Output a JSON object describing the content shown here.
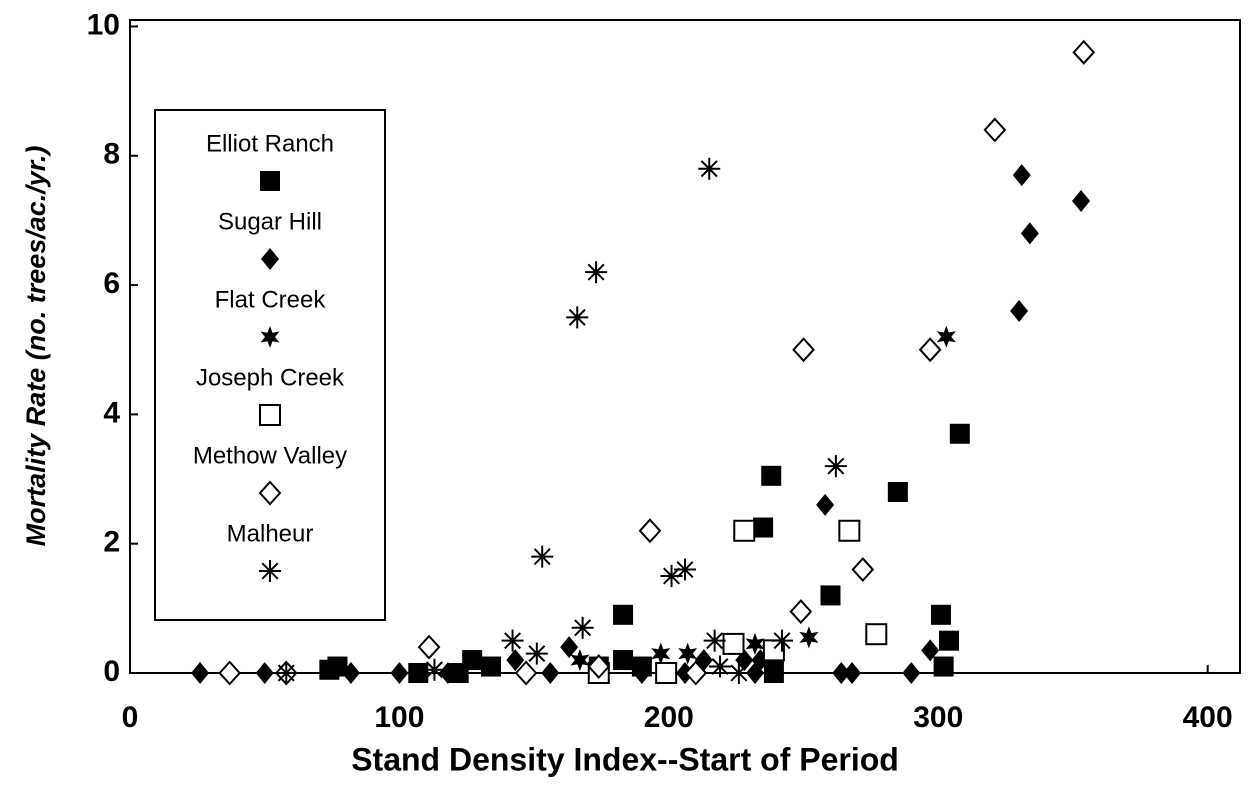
{
  "chart_data": {
    "type": "scatter",
    "xlabel": "Stand Density Index--Start of Period",
    "ylabel": "Mortality Rate (no. trees/ac./yr.)",
    "xlim": [
      0,
      412
    ],
    "ylim": [
      0,
      10.1
    ],
    "xticks": [
      0,
      100,
      200,
      300,
      400
    ],
    "yticks": [
      0,
      2,
      4,
      6,
      8,
      10
    ],
    "legend": "upper left",
    "series": [
      {
        "name": "Elliot Ranch",
        "marker": "filled-square",
        "color": "#000000",
        "x": [
          74,
          77,
          107,
          122,
          127,
          134,
          174,
          183,
          183,
          190,
          235,
          238,
          239,
          239,
          260,
          285,
          301,
          302,
          304,
          308
        ],
        "values": [
          0.05,
          0.1,
          0,
          0,
          0.2,
          0.1,
          0.1,
          0.9,
          0.2,
          0.1,
          2.25,
          3.05,
          0,
          0.3,
          1.2,
          2.8,
          0.9,
          0.1,
          0.5,
          3.7
        ]
      },
      {
        "name": "Sugar Hill",
        "marker": "filled-diamond",
        "color": "#000000",
        "x": [
          26,
          50,
          82,
          100,
          118,
          143,
          156,
          163,
          174,
          190,
          206,
          213,
          228,
          232,
          234,
          258,
          264,
          268,
          290,
          297,
          330,
          331,
          334,
          353
        ],
        "values": [
          0,
          0,
          0,
          0,
          0,
          0.2,
          0,
          0.4,
          0,
          0,
          0,
          0.2,
          0.2,
          0,
          0.2,
          2.6,
          0,
          0,
          0,
          0.35,
          5.6,
          7.7,
          6.8,
          7.3
        ]
      },
      {
        "name": "Flat Creek",
        "marker": "star",
        "color": "#000000",
        "x": [
          167,
          197,
          207,
          232,
          238,
          252,
          303
        ],
        "values": [
          0.2,
          0.3,
          0.3,
          0.45,
          0.35,
          0.55,
          5.2
        ]
      },
      {
        "name": "Joseph Creek",
        "marker": "open-square",
        "color": "#000000",
        "x": [
          174,
          199,
          224,
          228,
          239,
          267,
          277
        ],
        "values": [
          0,
          0,
          0.45,
          2.2,
          0.35,
          2.2,
          0.6
        ]
      },
      {
        "name": "Methow Valley",
        "marker": "open-diamond",
        "color": "#000000",
        "x": [
          37,
          58,
          111,
          147,
          174,
          193,
          210,
          249,
          250,
          272,
          297,
          321,
          354
        ],
        "values": [
          0,
          0,
          0.4,
          0,
          0.1,
          2.2,
          0,
          0.95,
          5.0,
          1.6,
          5.0,
          8.4,
          9.6
        ]
      },
      {
        "name": "Malheur",
        "marker": "asterisk",
        "color": "#000000",
        "x": [
          58,
          113,
          142,
          151,
          153,
          166,
          168,
          173,
          201,
          206,
          215,
          217,
          219,
          226,
          242,
          262
        ],
        "values": [
          0,
          0.05,
          0.5,
          0.3,
          1.8,
          5.5,
          0.7,
          6.2,
          1.5,
          1.6,
          7.8,
          0.5,
          0.1,
          0,
          0.5,
          3.2
        ]
      }
    ]
  }
}
